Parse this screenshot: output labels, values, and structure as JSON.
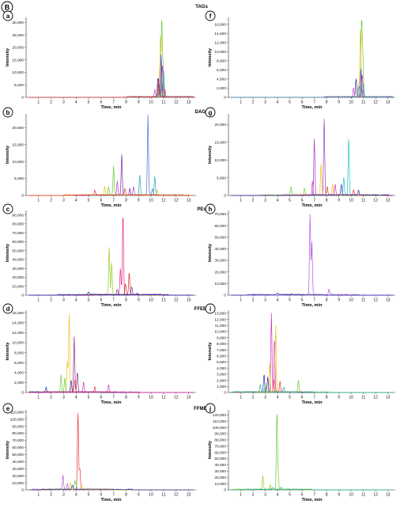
{
  "figure": {
    "panel_letter": "B",
    "ylabel": "Intensity",
    "xlabel": "Time, min"
  },
  "chart_data": [
    {
      "panel": "a",
      "group": "TAGs",
      "type": "line",
      "xlabel": "Time, min",
      "ylabel": "Intensity",
      "xlim": [
        0,
        13.6
      ],
      "ylim": [
        0,
        32000
      ],
      "yticks": [
        0,
        5000,
        10000,
        15000,
        20000,
        25000,
        30000
      ],
      "xticks": [
        1,
        2,
        3,
        4,
        5,
        6,
        7,
        8,
        9,
        10,
        11,
        12,
        13
      ],
      "series": [
        {
          "color": "#66cc33",
          "peaks": [
            [
              10.85,
              31000
            ],
            [
              10.95,
              12000
            ]
          ]
        },
        {
          "color": "#e8c21a",
          "peaks": [
            [
              10.75,
              25000
            ],
            [
              10.65,
              6000
            ]
          ]
        },
        {
          "color": "#2a2ab0",
          "peaks": [
            [
              10.8,
              17000
            ],
            [
              10.55,
              8000
            ]
          ]
        },
        {
          "color": "#cc33cc",
          "peaks": [
            [
              10.9,
              13000
            ],
            [
              10.3,
              3000
            ]
          ]
        },
        {
          "color": "#33a0a0",
          "peaks": [
            [
              11.0,
              11000
            ],
            [
              10.7,
              5000
            ]
          ]
        },
        {
          "color": "#e83333",
          "peaks": [
            [
              10.6,
              7000
            ],
            [
              11.1,
              3000
            ]
          ]
        }
      ]
    },
    {
      "panel": "f",
      "group": "TAGs",
      "type": "line",
      "xlabel": "Time, min",
      "ylabel": "Intensity",
      "xlim": [
        0,
        13.6
      ],
      "ylim": [
        0,
        17500
      ],
      "yticks": [
        0,
        2000,
        4000,
        6000,
        8000,
        10000,
        12000,
        14000,
        16000
      ],
      "xticks": [
        1,
        2,
        3,
        4,
        5,
        6,
        7,
        8,
        9,
        10,
        11,
        12,
        13
      ],
      "series": [
        {
          "color": "#66cc33",
          "peaks": [
            [
              10.85,
              17000
            ],
            [
              10.95,
              9000
            ]
          ]
        },
        {
          "color": "#e8c21a",
          "peaks": [
            [
              10.75,
              15000
            ],
            [
              10.6,
              3000
            ]
          ]
        },
        {
          "color": "#2a2ab0",
          "peaks": [
            [
              10.4,
              4000
            ],
            [
              10.8,
              6000
            ]
          ]
        },
        {
          "color": "#cc33cc",
          "peaks": [
            [
              10.9,
              5000
            ],
            [
              10.2,
              2000
            ]
          ]
        },
        {
          "color": "#33a0a0",
          "peaks": [
            [
              11.0,
              3000
            ],
            [
              10.65,
              2500
            ]
          ]
        }
      ]
    },
    {
      "panel": "b",
      "group": "DAGs",
      "type": "line",
      "xlabel": "Time, min",
      "ylabel": "Intensity",
      "xlim": [
        0,
        13.6
      ],
      "ylim": [
        0,
        24000
      ],
      "yticks": [
        0,
        5000,
        10000,
        15000,
        20000
      ],
      "xticks": [
        1,
        2,
        3,
        4,
        5,
        6,
        7,
        8,
        9,
        10,
        11,
        12,
        13
      ],
      "series": [
        {
          "color": "#4a6fd8",
          "peaks": [
            [
              9.75,
              23500
            ],
            [
              10.1,
              2000
            ]
          ]
        },
        {
          "color": "#6a2aa8",
          "peaks": [
            [
              7.65,
              11800
            ],
            [
              8.3,
              2000
            ]
          ]
        },
        {
          "color": "#66cc33",
          "peaks": [
            [
              7.0,
              8500
            ],
            [
              6.6,
              2500
            ]
          ]
        },
        {
          "color": "#22a9a9",
          "peaks": [
            [
              9.1,
              6000
            ],
            [
              10.3,
              5500
            ]
          ]
        },
        {
          "color": "#cc33cc",
          "peaks": [
            [
              7.3,
              4000
            ],
            [
              8.6,
              2500
            ]
          ]
        },
        {
          "color": "#e8c21a",
          "peaks": [
            [
              6.3,
              2500
            ],
            [
              10.5,
              1500
            ]
          ]
        },
        {
          "color": "#e83333",
          "peaks": [
            [
              5.5,
              1500
            ],
            [
              7.9,
              2000
            ]
          ]
        }
      ]
    },
    {
      "panel": "g",
      "group": "DAGs",
      "type": "line",
      "xlabel": "Time, min",
      "ylabel": "Intensity",
      "xlim": [
        0,
        13.6
      ],
      "ylim": [
        0,
        23000
      ],
      "yticks": [
        0,
        5000,
        10000,
        15000,
        20000
      ],
      "xticks": [
        1,
        2,
        3,
        4,
        5,
        6,
        7,
        8,
        9,
        10,
        11,
        12,
        13
      ],
      "series": [
        {
          "color": "#a03ab8",
          "peaks": [
            [
              7.8,
              22000
            ],
            [
              7.0,
              16000
            ]
          ]
        },
        {
          "color": "#22c0c0",
          "peaks": [
            [
              9.8,
              16000
            ],
            [
              9.4,
              5000
            ]
          ]
        },
        {
          "color": "#e8c21a",
          "peaks": [
            [
              7.55,
              9000
            ],
            [
              8.5,
              3000
            ]
          ]
        },
        {
          "color": "#cc33cc",
          "peaks": [
            [
              6.85,
              4000
            ],
            [
              8.7,
              3000
            ]
          ]
        },
        {
          "color": "#66cc33",
          "peaks": [
            [
              5.1,
              2500
            ],
            [
              6.2,
              2000
            ]
          ]
        },
        {
          "color": "#e83333",
          "peaks": [
            [
              8.05,
              2500
            ],
            [
              10.2,
              1500
            ]
          ]
        },
        {
          "color": "#2a2ab0",
          "peaks": [
            [
              9.2,
              3000
            ],
            [
              10.6,
              1500
            ]
          ]
        }
      ]
    },
    {
      "panel": "c",
      "group": "PEs",
      "type": "line",
      "xlabel": "Time, min",
      "ylabel": "Intensity",
      "xlim": [
        0,
        13.6
      ],
      "ylim": [
        0,
        95000
      ],
      "yticks": [
        0,
        10000,
        20000,
        30000,
        40000,
        50000,
        60000,
        70000,
        80000,
        90000
      ],
      "xticks": [
        1,
        2,
        3,
        4,
        5,
        6,
        7,
        8,
        9,
        10,
        11,
        12,
        13
      ],
      "series": [
        {
          "color": "#ee2288",
          "peaks": [
            [
              7.75,
              94000
            ],
            [
              7.55,
              30000
            ]
          ]
        },
        {
          "color": "#99cc22",
          "peaks": [
            [
              6.65,
              53000
            ],
            [
              6.85,
              36000
            ]
          ]
        },
        {
          "color": "#cc3322",
          "peaks": [
            [
              8.25,
              25000
            ],
            [
              7.95,
              13000
            ]
          ]
        },
        {
          "color": "#6a2aa8",
          "peaks": [
            [
              8.45,
              9000
            ],
            [
              7.3,
              6000
            ]
          ]
        },
        {
          "color": "#2a2ab0",
          "peaks": [
            [
              5.0,
              3000
            ],
            [
              8.9,
              2000
            ]
          ]
        }
      ]
    },
    {
      "panel": "h",
      "group": "PEs",
      "type": "line",
      "xlabel": "Time, min",
      "ylabel": "Intensity",
      "xlim": [
        0,
        13.6
      ],
      "ylim": [
        0,
        73000
      ],
      "yticks": [
        0,
        10000,
        20000,
        30000,
        40000,
        50000,
        60000,
        70000
      ],
      "xticks": [
        1,
        2,
        3,
        4,
        5,
        6,
        7,
        8,
        9,
        10,
        11,
        12,
        13
      ],
      "series": [
        {
          "color": "#b058d8",
          "peaks": [
            [
              6.65,
              70000
            ],
            [
              6.8,
              45000
            ],
            [
              8.2,
              5000
            ]
          ]
        },
        {
          "color": "#2a2ab0",
          "peaks": [
            [
              4.0,
              1500
            ],
            [
              5.2,
              1000
            ]
          ]
        }
      ]
    },
    {
      "panel": "d",
      "group": "FFEEs",
      "type": "line",
      "xlabel": "Time, min",
      "ylabel": "Intensity",
      "xlim": [
        0,
        13.6
      ],
      "ylim": [
        0,
        16500
      ],
      "yticks": [
        0,
        2000,
        4000,
        6000,
        8000,
        10000,
        12000,
        14000,
        16000
      ],
      "xticks": [
        1,
        2,
        3,
        4,
        5,
        6,
        7,
        8,
        9,
        10,
        11,
        12,
        13
      ],
      "series": [
        {
          "color": "#f0c020",
          "peaks": [
            [
              3.45,
              16000
            ],
            [
              3.3,
              6000
            ]
          ]
        },
        {
          "color": "#8a2a8a",
          "peaks": [
            [
              3.85,
              11000
            ],
            [
              4.1,
              4000
            ]
          ]
        },
        {
          "color": "#66cc33",
          "peaks": [
            [
              2.8,
              3500
            ],
            [
              3.1,
              3000
            ]
          ]
        },
        {
          "color": "#2a2ab0",
          "peaks": [
            [
              1.6,
              1000
            ],
            [
              3.6,
              2500
            ]
          ]
        },
        {
          "color": "#e83333",
          "peaks": [
            [
              3.9,
              2500
            ],
            [
              5.5,
              1000
            ]
          ]
        },
        {
          "color": "#cc33cc",
          "peaks": [
            [
              4.6,
              2000
            ],
            [
              6.6,
              1500
            ]
          ]
        }
      ]
    },
    {
      "panel": "i",
      "group": "FFEEs",
      "type": "line",
      "xlabel": "Time, min",
      "ylabel": "Intensity",
      "xlim": [
        0,
        13.6
      ],
      "ylim": [
        0,
        13500
      ],
      "yticks": [
        0,
        1000,
        2000,
        3000,
        4000,
        5000,
        6000,
        7000,
        8000,
        9000,
        10000,
        11000,
        12000,
        13000
      ],
      "xticks": [
        1,
        2,
        3,
        4,
        5,
        6,
        7,
        8,
        9,
        10,
        11,
        12,
        13
      ],
      "series": [
        {
          "color": "#cc33cc",
          "peaks": [
            [
              3.5,
              13000
            ],
            [
              3.75,
              9000
            ]
          ]
        },
        {
          "color": "#f0c020",
          "peaks": [
            [
              3.85,
              11000
            ],
            [
              3.35,
              5000
            ]
          ]
        },
        {
          "color": "#2a2ab0",
          "peaks": [
            [
              2.9,
              3000
            ],
            [
              3.2,
              2500
            ]
          ]
        },
        {
          "color": "#e83333",
          "peaks": [
            [
              3.7,
              2000
            ],
            [
              4.2,
              1800
            ]
          ]
        },
        {
          "color": "#66cc33",
          "peaks": [
            [
              5.7,
              2000
            ],
            [
              3.0,
              1500
            ]
          ]
        },
        {
          "color": "#22a9a9",
          "peaks": [
            [
              2.6,
              1200
            ],
            [
              4.5,
              800
            ]
          ]
        }
      ]
    },
    {
      "panel": "e",
      "group": "FFMEs",
      "type": "line",
      "xlabel": "Time, min",
      "ylabel": "Intensity",
      "xlim": [
        0,
        13.6
      ],
      "ylim": [
        0,
        113000
      ],
      "yticks": [
        0,
        10000,
        20000,
        30000,
        40000,
        50000,
        60000,
        70000,
        80000,
        90000,
        100000,
        110000
      ],
      "xticks": [
        1,
        2,
        3,
        4,
        5,
        6,
        7,
        8,
        9,
        10,
        11,
        12,
        13
      ],
      "series": [
        {
          "color": "#e83333",
          "peaks": [
            [
              4.15,
              110000
            ],
            [
              4.3,
              30000
            ]
          ]
        },
        {
          "color": "#b058d8",
          "peaks": [
            [
              2.95,
              20000
            ],
            [
              3.3,
              8000
            ]
          ]
        },
        {
          "color": "#66cc33",
          "peaks": [
            [
              3.9,
              12000
            ],
            [
              4.0,
              7000
            ]
          ]
        },
        {
          "color": "#f0c020",
          "peaks": [
            [
              3.55,
              10000
            ],
            [
              4.45,
              5000
            ]
          ]
        },
        {
          "color": "#2a2ab0",
          "peaks": [
            [
              3.7,
              6000
            ],
            [
              6.0,
              1000
            ]
          ]
        }
      ]
    },
    {
      "panel": "j",
      "group": "FFMEs",
      "type": "line",
      "xlabel": "Time, min",
      "ylabel": "Intensity",
      "xlim": [
        0,
        13.6
      ],
      "ylim": [
        0,
        128000
      ],
      "yticks": [
        0,
        10000,
        20000,
        30000,
        40000,
        50000,
        60000,
        70000,
        80000,
        90000,
        100000,
        110000,
        120000
      ],
      "xticks": [
        1,
        2,
        3,
        4,
        5,
        6,
        7,
        8,
        9,
        10,
        11,
        12,
        13
      ],
      "series": [
        {
          "color": "#66cc33",
          "peaks": [
            [
              3.95,
              125000
            ],
            [
              4.05,
              20000
            ]
          ]
        },
        {
          "color": "#99cc22",
          "peaks": [
            [
              2.8,
              22000
            ],
            [
              3.4,
              8000
            ]
          ]
        },
        {
          "color": "#22a9a9",
          "peaks": [
            [
              4.3,
              4000
            ],
            [
              3.6,
              3000
            ]
          ]
        }
      ]
    }
  ]
}
